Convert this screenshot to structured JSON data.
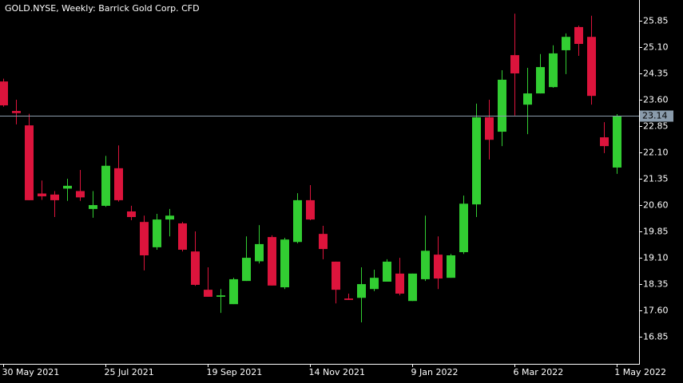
{
  "chart_data": {
    "type": "candlestick",
    "title": "GOLD.NYSE, Weekly:  Barrick Gold Corp. CFD",
    "categories": [
      "30 May 2021",
      null,
      null,
      null,
      null,
      null,
      null,
      null,
      "25 Jul 2021",
      null,
      null,
      null,
      null,
      null,
      null,
      null,
      "19 Sep 2021",
      null,
      null,
      null,
      null,
      null,
      null,
      null,
      "14 Nov 2021",
      null,
      null,
      null,
      null,
      null,
      null,
      null,
      "9 Jan 2022",
      null,
      null,
      null,
      null,
      null,
      null,
      null,
      "6 Mar 2022",
      null,
      null,
      null,
      null,
      null,
      null,
      null,
      "1 May 2022"
    ],
    "open": [
      24.12,
      23.28,
      22.87,
      20.93,
      20.9,
      21.07,
      21.0,
      20.49,
      20.58,
      21.65,
      20.42,
      20.12,
      19.4,
      20.19,
      20.08,
      19.28,
      18.19,
      17.99,
      17.78,
      18.44,
      19.0,
      19.69,
      18.26,
      19.55,
      20.74,
      19.78,
      18.99,
      17.94,
      17.96,
      18.21,
      18.42,
      18.65,
      17.87,
      18.49,
      19.19,
      18.53,
      19.26,
      20.62,
      23.1,
      22.69,
      24.87,
      23.46,
      23.78,
      23.96,
      25.01,
      25.67,
      25.39,
      22.53,
      21.67
    ],
    "high": [
      24.2,
      23.6,
      23.2,
      21.3,
      21.0,
      21.35,
      21.6,
      21.0,
      22.0,
      22.3,
      20.58,
      20.3,
      20.35,
      20.49,
      20.12,
      19.85,
      18.83,
      18.21,
      18.53,
      19.71,
      20.03,
      19.74,
      19.67,
      20.94,
      21.17,
      20.01,
      18.99,
      18.08,
      18.83,
      18.76,
      19.06,
      19.1,
      18.65,
      20.3,
      19.71,
      19.21,
      20.87,
      23.49,
      23.6,
      24.44,
      26.05,
      24.51,
      24.9,
      25.15,
      25.49,
      25.71,
      25.99,
      22.96,
      23.19
    ],
    "low": [
      23.4,
      22.9,
      20.74,
      20.75,
      20.26,
      20.72,
      20.72,
      20.24,
      20.55,
      20.7,
      20.17,
      18.74,
      19.33,
      19.71,
      19.28,
      18.3,
      17.99,
      17.53,
      17.78,
      18.44,
      18.94,
      18.31,
      18.21,
      19.51,
      20.17,
      19.06,
      17.8,
      17.9,
      17.26,
      18.15,
      18.42,
      18.03,
      17.87,
      18.44,
      18.21,
      18.53,
      19.21,
      20.26,
      21.9,
      22.28,
      23.15,
      22.62,
      23.78,
      23.94,
      24.33,
      24.85,
      23.46,
      22.08,
      21.49
    ],
    "close": [
      23.44,
      23.22,
      20.74,
      20.85,
      20.74,
      21.15,
      20.82,
      20.6,
      21.72,
      20.74,
      20.26,
      19.17,
      20.19,
      20.3,
      19.33,
      18.33,
      17.99,
      18.03,
      18.49,
      19.1,
      19.49,
      18.31,
      19.62,
      20.74,
      20.19,
      19.35,
      18.19,
      17.9,
      18.35,
      18.53,
      18.99,
      18.08,
      18.65,
      19.3,
      18.51,
      19.17,
      20.64,
      23.1,
      22.46,
      24.17,
      24.35,
      23.78,
      24.53,
      24.92,
      25.39,
      25.19,
      23.71,
      22.28,
      23.14
    ],
    "up_color": "#32cd32",
    "down_color": "#dc143c",
    "last_price": 23.14,
    "ylim": [
      16.08,
      26.44
    ],
    "yticks": [
      25.85,
      {
        "value": 25.1,
        "label": "25.10"
      },
      24.35,
      {
        "value": 23.6,
        "label": "23.60"
      },
      22.85,
      {
        "value": 22.1,
        "label": "22.10"
      },
      21.35,
      {
        "value": 20.6,
        "label": "20.60"
      },
      19.85,
      {
        "value": 19.1,
        "label": "19.10"
      },
      18.35,
      {
        "value": 17.6,
        "label": "17.60"
      },
      16.85
    ]
  }
}
